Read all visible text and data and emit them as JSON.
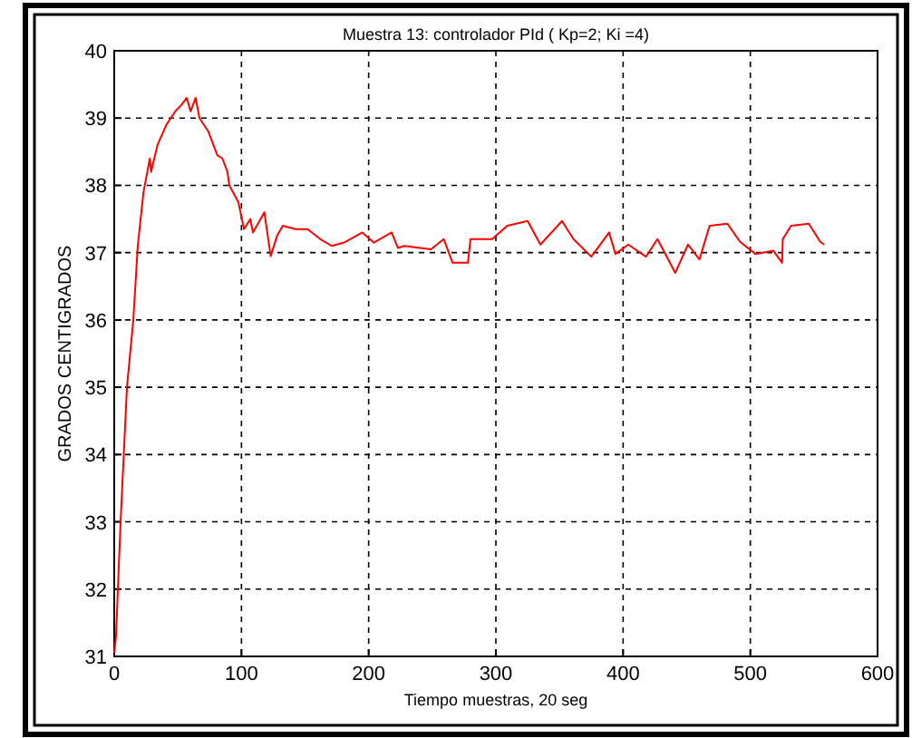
{
  "chart_data": {
    "type": "line",
    "title": "Muestra 13: controlador PId ( Kp=2; Ki =4)",
    "xlabel": "Tiempo muestras, 20 seg",
    "ylabel": "GRADOS CENTIGRADOS",
    "xlim": [
      0,
      600
    ],
    "xticks": [
      0,
      100,
      200,
      300,
      400,
      500,
      600
    ],
    "ylim": [
      31,
      40
    ],
    "yticks": [
      31,
      32,
      33,
      34,
      35,
      36,
      37,
      38,
      39,
      40
    ],
    "grid": true,
    "series": [
      {
        "color": "#ff0000",
        "x": [
          0,
          1.4,
          5,
          10,
          15,
          18.5,
          23,
          28,
          29,
          34,
          41,
          48,
          53,
          57,
          60,
          64,
          67,
          74,
          81,
          85,
          89,
          90.5,
          97.6,
          102,
          107,
          109,
          118,
          123,
          128,
          132.5,
          142.6,
          152,
          162,
          171,
          180.6,
          195,
          204,
          218,
          223,
          228,
          249,
          259,
          266,
          278,
          280,
          297,
          309,
          325,
          335,
          352,
          361,
          375,
          389,
          394,
          404,
          418,
          427,
          441,
          451,
          460,
          468,
          482,
          492,
          504,
          518,
          525,
          525.5,
          532,
          546,
          555,
          558
        ],
        "values": [
          31.05,
          31.3,
          33,
          35,
          36,
          37.1,
          37.9,
          38.4,
          38.2,
          38.6,
          38.9,
          39.1,
          39.2,
          39.3,
          39.1,
          39.3,
          39,
          38.8,
          38.45,
          38.4,
          38.2,
          38,
          37.75,
          37.35,
          37.5,
          37.3,
          37.6,
          36.95,
          37.25,
          37.4,
          37.35,
          37.35,
          37.2,
          37.1,
          37.15,
          37.3,
          37.15,
          37.3,
          37.07,
          37.1,
          37.05,
          37.2,
          36.85,
          36.85,
          37.2,
          37.2,
          37.4,
          37.47,
          37.12,
          37.47,
          37.2,
          36.94,
          37.3,
          36.98,
          37.12,
          36.94,
          37.2,
          36.7,
          37.12,
          36.9,
          37.4,
          37.43,
          37.16,
          36.98,
          37.03,
          36.85,
          37.2,
          37.4,
          37.43,
          37.16,
          37.12
        ]
      }
    ]
  }
}
